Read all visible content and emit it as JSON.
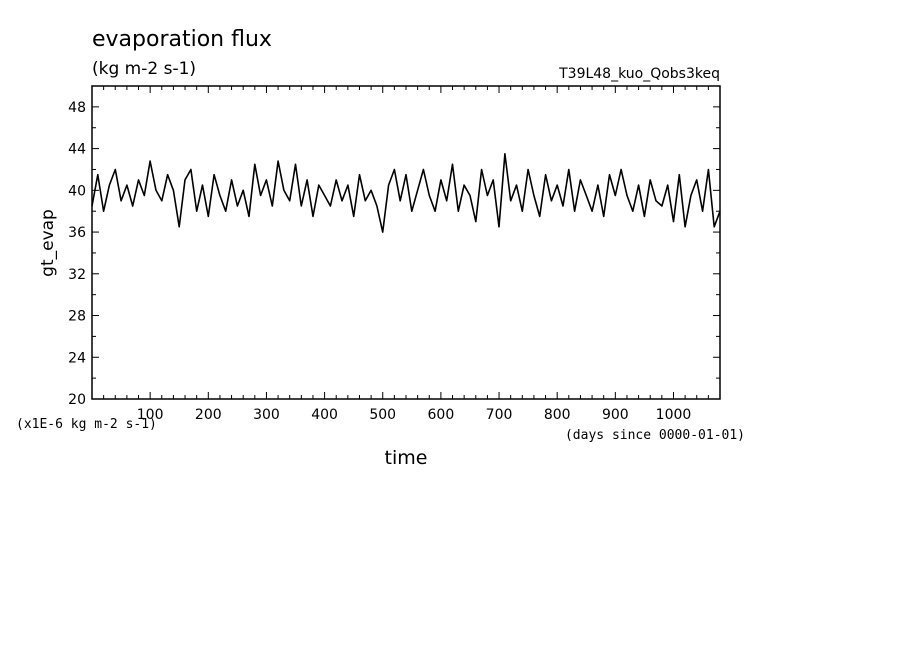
{
  "chart_data": {
    "type": "line",
    "title": "evaporation flux",
    "subtitle": "(kg m-2 s-1)",
    "run_label": "T39L48_kuo_Qobs3keq",
    "ylabel": "gt_evap",
    "xlabel": "time",
    "y_units_note": "(x1E-6 kg m-2 s-1)",
    "x_units_note": "(days since 0000-01-01)",
    "xlim": [
      0,
      1080
    ],
    "ylim": [
      20,
      50
    ],
    "x_ticks": [
      100,
      200,
      300,
      400,
      500,
      600,
      700,
      800,
      900,
      1000
    ],
    "y_ticks": [
      20,
      24,
      28,
      32,
      36,
      40,
      44,
      48
    ],
    "grid": false,
    "line_color": "#000000",
    "series": [
      {
        "x": [
          0,
          10,
          20,
          30,
          40,
          50,
          60,
          70,
          80,
          90,
          100,
          110,
          120,
          130,
          140,
          150,
          160,
          170,
          180,
          190,
          200,
          210,
          220,
          230,
          240,
          250,
          260,
          270,
          280,
          290,
          300,
          310,
          320,
          330,
          340,
          350,
          360,
          370,
          380,
          390,
          400,
          410,
          420,
          430,
          440,
          450,
          460,
          470,
          480,
          490,
          500,
          510,
          520,
          530,
          540,
          550,
          560,
          570,
          580,
          590,
          600,
          610,
          620,
          630,
          640,
          650,
          660,
          670,
          680,
          690,
          700,
          710,
          720,
          730,
          740,
          750,
          760,
          770,
          780,
          790,
          800,
          810,
          820,
          830,
          840,
          850,
          860,
          870,
          880,
          890,
          900,
          910,
          920,
          930,
          940,
          950,
          960,
          970,
          980,
          990,
          1000,
          1010,
          1020,
          1030,
          1040,
          1050,
          1060,
          1070,
          1080
        ],
        "values": [
          38.5,
          41.5,
          38.0,
          40.5,
          42.0,
          39.0,
          40.5,
          38.5,
          41.0,
          39.5,
          42.8,
          40.0,
          39.0,
          41.5,
          40.0,
          36.5,
          41.0,
          42.0,
          38.0,
          40.5,
          37.5,
          41.5,
          39.5,
          38.0,
          41.0,
          38.5,
          40.0,
          37.5,
          42.5,
          39.5,
          41.0,
          38.5,
          42.8,
          40.0,
          39.0,
          42.5,
          38.5,
          41.0,
          37.5,
          40.5,
          39.5,
          38.5,
          41.0,
          39.0,
          40.5,
          37.5,
          41.5,
          39.0,
          40.0,
          38.5,
          36.0,
          40.5,
          42.0,
          39.0,
          41.5,
          38.0,
          40.0,
          42.0,
          39.5,
          38.0,
          41.0,
          39.0,
          42.5,
          38.0,
          40.5,
          39.5,
          37.0,
          42.0,
          39.5,
          41.0,
          36.5,
          43.5,
          39.0,
          40.5,
          38.0,
          42.0,
          39.5,
          37.5,
          41.5,
          39.0,
          40.5,
          38.5,
          42.0,
          38.0,
          41.0,
          39.5,
          38.0,
          40.5,
          37.5,
          41.5,
          39.5,
          42.0,
          39.5,
          38.0,
          40.5,
          37.5,
          41.0,
          39.0,
          38.5,
          40.5,
          37.0,
          41.5,
          36.5,
          39.5,
          41.0,
          38.0,
          42.0,
          36.5,
          38.0
        ]
      }
    ]
  }
}
